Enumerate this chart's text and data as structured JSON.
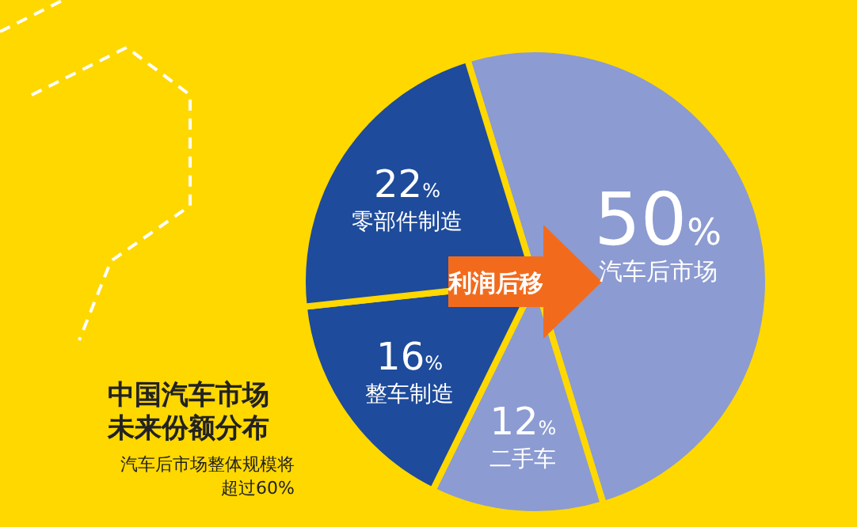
{
  "chart_data": {
    "type": "pie",
    "title": "中国汽车市场未来份额分布",
    "subtitle": "汽车后市场整体规模将超过60%",
    "categories": [
      "汽车后市场",
      "二手车",
      "整车制造",
      "零部件制造"
    ],
    "values": [
      50,
      12,
      16,
      22
    ],
    "value_labels": [
      "50%",
      "12%",
      "16%",
      "22%"
    ],
    "colors": [
      "#8c9bd1",
      "#8c9bd1",
      "#1e4b9b",
      "#1e4b9b"
    ],
    "annotations": [
      "利润后移"
    ]
  }
}
